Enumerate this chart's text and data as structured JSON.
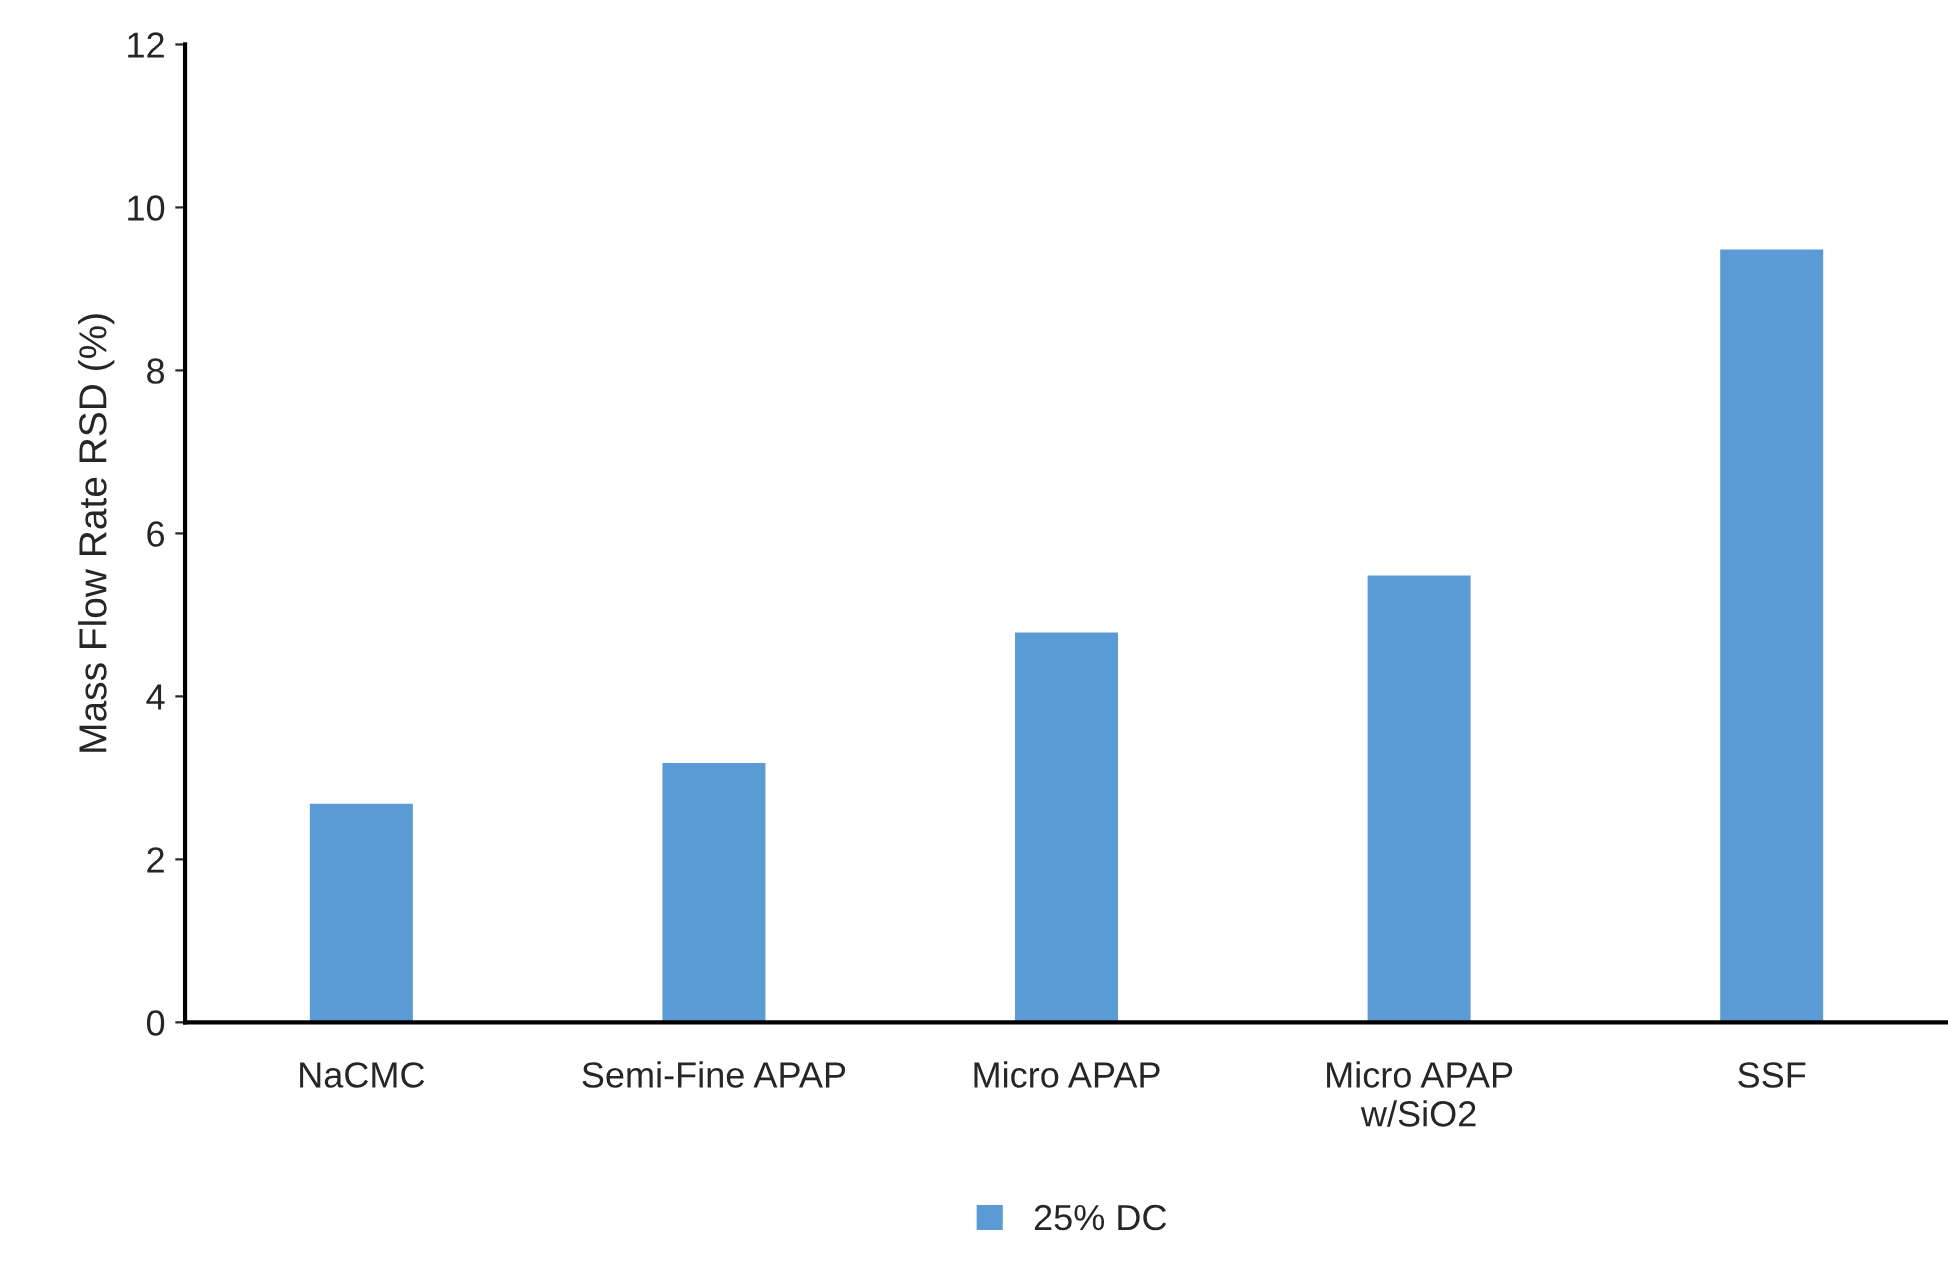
{
  "chart_data": {
    "type": "bar",
    "ylabel": "Mass Flow Rate RSD (%)",
    "categories": [
      "NaCMC",
      "Semi-Fine APAP",
      "Micro APAP",
      "Micro APAP\nw/SiO2",
      "SSF"
    ],
    "series": [
      {
        "name": "25% DC",
        "color": "#5b9bd5",
        "values": [
          2.7,
          3.2,
          4.8,
          5.5,
          9.5
        ]
      }
    ],
    "ylim": [
      0,
      12
    ],
    "yticks": [
      0,
      2,
      4,
      6,
      8,
      10,
      12
    ],
    "grid": false,
    "legend": "bottom"
  }
}
